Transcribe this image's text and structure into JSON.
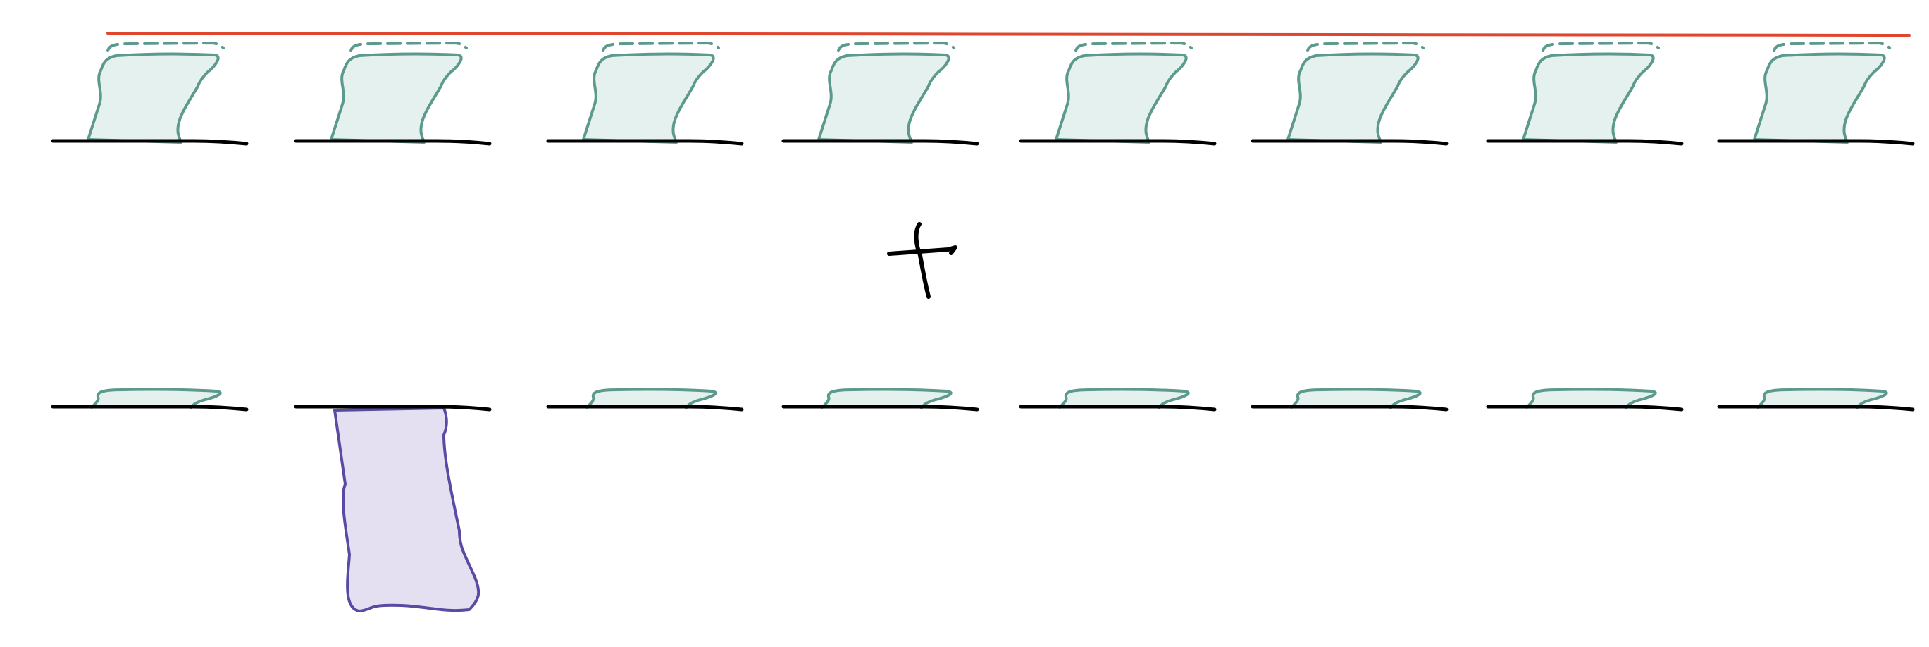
{
  "colors": {
    "background": "#ffffff",
    "ink": "#000000",
    "red_line": "#e0452e",
    "teal_stroke": "#5c9a8d",
    "teal_fill": "#e5f1ef",
    "purple_stroke": "#5a4aa3",
    "purple_fill": "#e5e0f1"
  },
  "top_row": {
    "cells": 8,
    "shape": "teal-cup-full",
    "rim": "dashed"
  },
  "bottom_row": {
    "cells": 8,
    "shape": "teal-flat",
    "exception": {
      "cell_index": 1,
      "shape": "purple-hanging"
    }
  },
  "operator": {
    "symbol": "plus",
    "icon": "handwritten-plus-icon"
  }
}
